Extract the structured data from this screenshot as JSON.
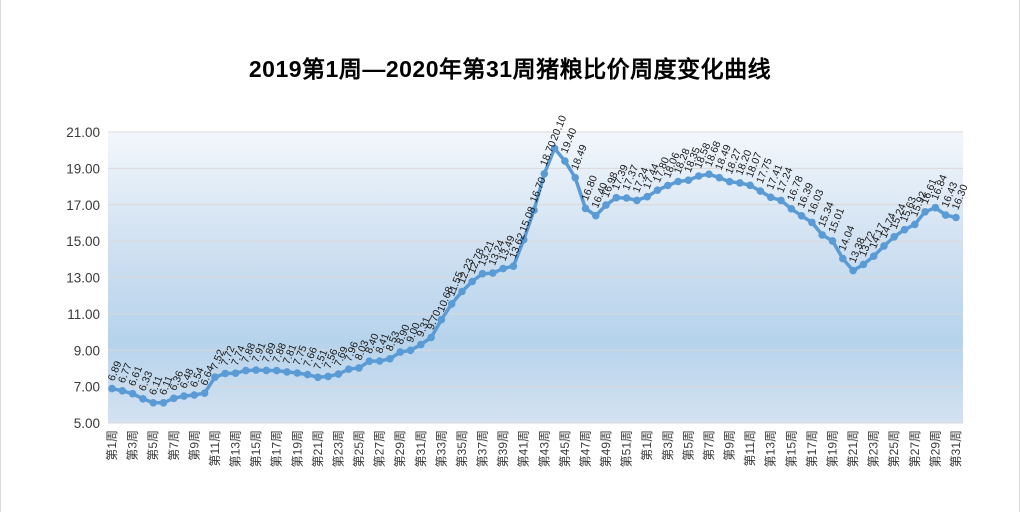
{
  "chart": {
    "title": "2019第1周—2020年第31周猪粮比价周度变化曲线"
  },
  "chart_data": {
    "type": "line",
    "title": "2019第1周—2020年第31周猪粮比价周度变化曲线",
    "legend": "none",
    "grid": "horizontal",
    "ylim": [
      5,
      21
    ],
    "y_tick_labels": [
      "5.00",
      "7.00",
      "9.00",
      "11.00",
      "13.00",
      "15.00",
      "17.00",
      "19.00",
      "21.00"
    ],
    "x_tick_labels": [
      "第1周",
      "第3周",
      "第5周",
      "第7周",
      "第9周",
      "第11周",
      "第13周",
      "第15周",
      "第17周",
      "第19周",
      "第21周",
      "第23周",
      "第25周",
      "第27周",
      "第29周",
      "第31周",
      "第33周",
      "第35周",
      "第37周",
      "第39周",
      "第41周",
      "第43周",
      "第45周",
      "第47周",
      "第49周",
      "第51周",
      "第1周",
      "第3周",
      "第5周",
      "第7周",
      "第9周",
      "第11周",
      "第13周",
      "第15周",
      "第17周",
      "第19周",
      "第21周",
      "第23周",
      "第25周",
      "第27周",
      "第29周",
      "第31周"
    ],
    "year_groups": [
      {
        "year": "2019",
        "weeks": 52
      },
      {
        "year": "2020",
        "weeks": 31
      }
    ],
    "series": [
      {
        "name": "猪粮比价",
        "values": [
          6.89,
          6.77,
          6.61,
          6.33,
          6.11,
          6.11,
          6.36,
          6.48,
          6.54,
          6.64,
          7.52,
          7.72,
          7.74,
          7.88,
          7.91,
          7.89,
          7.88,
          7.81,
          7.75,
          7.66,
          7.51,
          7.56,
          7.69,
          7.96,
          8.03,
          8.4,
          8.41,
          8.53,
          8.9,
          9.0,
          9.31,
          9.7,
          10.68,
          11.55,
          12.23,
          12.78,
          13.21,
          13.24,
          13.49,
          13.62,
          15.08,
          16.7,
          18.7,
          20.1,
          19.4,
          18.49,
          16.8,
          16.4,
          16.98,
          17.39,
          17.37,
          17.24,
          17.44,
          17.8,
          18.06,
          18.28,
          18.35,
          18.58,
          18.68,
          18.49,
          18.27,
          18.2,
          18.07,
          17.75,
          17.41,
          17.24,
          16.78,
          16.39,
          16.03,
          15.34,
          15.01,
          14.04,
          13.38,
          13.72,
          14.17,
          14.74,
          15.24,
          15.63,
          15.92,
          16.61,
          16.84,
          16.43,
          16.3
        ]
      }
    ],
    "data_labels": "all points, value with 2 decimals, rotated",
    "colors": {
      "line": "#5b9bd5",
      "marker": "#5b9bd5",
      "gridline": "#d9d9d9",
      "axis_text": "#3a3a3a",
      "data_label_text": "#1a1a1a",
      "plot_gradient": [
        "#f2f7fc",
        "#cfe0f1",
        "#b6d3ec",
        "#d4e2f1"
      ]
    }
  }
}
